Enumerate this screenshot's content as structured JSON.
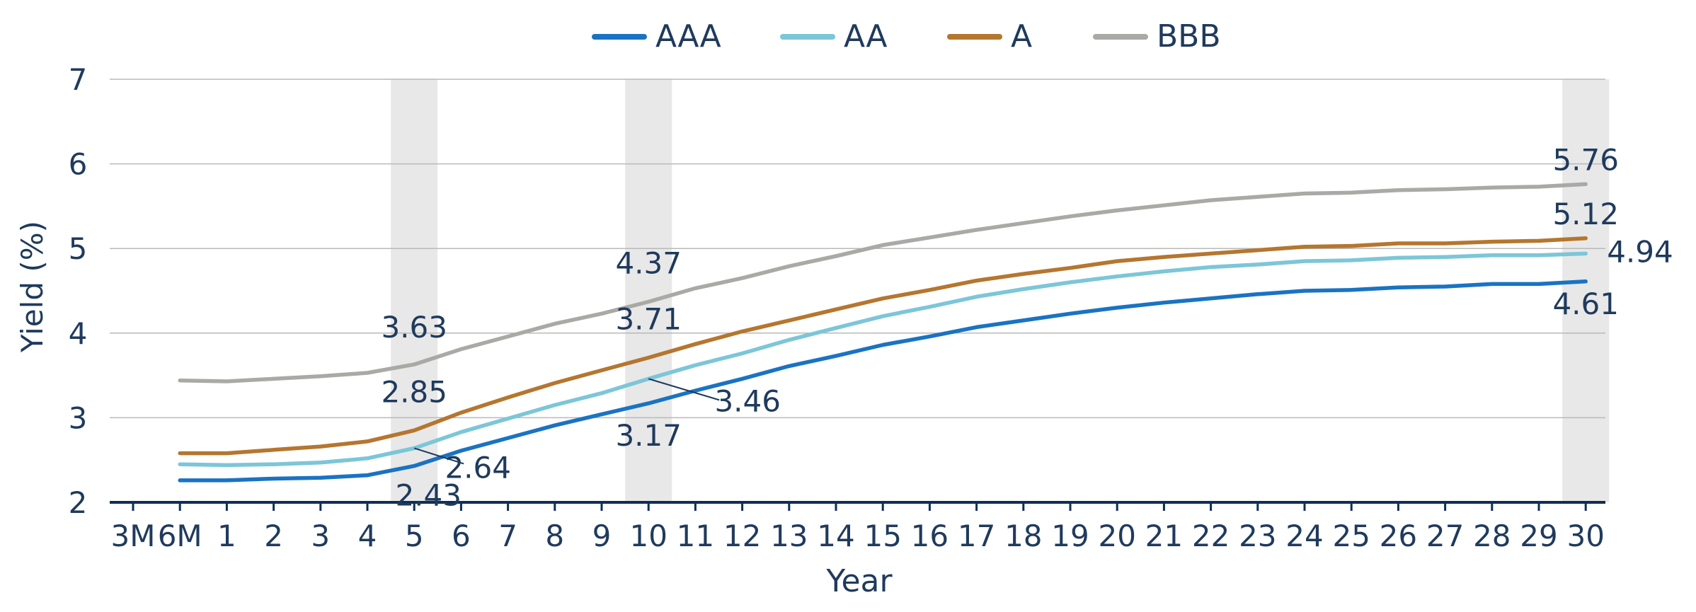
{
  "chart_data": {
    "type": "line",
    "xlabel": "Year",
    "ylabel": "Yield (%)",
    "ylim": [
      2,
      7
    ],
    "yticks": [
      2,
      3,
      4,
      5,
      6,
      7
    ],
    "grid": true,
    "legend_position": "top-center",
    "categories": [
      "3M",
      "6M",
      "1",
      "2",
      "3",
      "4",
      "5",
      "6",
      "7",
      "8",
      "9",
      "10",
      "11",
      "12",
      "13",
      "14",
      "15",
      "16",
      "17",
      "18",
      "19",
      "20",
      "21",
      "22",
      "23",
      "24",
      "25",
      "26",
      "27",
      "28",
      "29",
      "30"
    ],
    "highlighted_categories": [
      "5",
      "10",
      "30"
    ],
    "series": [
      {
        "name": "AAA",
        "color": "#1a73c2",
        "values": [
          null,
          2.26,
          2.26,
          2.28,
          2.29,
          2.32,
          2.43,
          2.61,
          2.76,
          2.91,
          3.04,
          3.17,
          3.32,
          3.46,
          3.61,
          3.73,
          3.86,
          3.96,
          4.07,
          4.15,
          4.23,
          4.3,
          4.36,
          4.41,
          4.46,
          4.5,
          4.51,
          4.54,
          4.55,
          4.58,
          4.58,
          4.61
        ]
      },
      {
        "name": "AA",
        "color": "#7cc6d8",
        "values": [
          null,
          2.45,
          2.44,
          2.45,
          2.47,
          2.52,
          2.64,
          2.83,
          2.99,
          3.15,
          3.29,
          3.46,
          3.62,
          3.76,
          3.92,
          4.06,
          4.2,
          4.31,
          4.43,
          4.52,
          4.6,
          4.67,
          4.73,
          4.78,
          4.81,
          4.85,
          4.86,
          4.89,
          4.9,
          4.92,
          4.92,
          4.94
        ]
      },
      {
        "name": "A",
        "color": "#b5762f",
        "values": [
          null,
          2.58,
          2.58,
          2.62,
          2.66,
          2.72,
          2.85,
          3.06,
          3.24,
          3.41,
          3.56,
          3.71,
          3.87,
          4.02,
          4.15,
          4.28,
          4.41,
          4.51,
          4.62,
          4.7,
          4.77,
          4.85,
          4.9,
          4.94,
          4.98,
          5.02,
          5.03,
          5.06,
          5.06,
          5.08,
          5.09,
          5.12
        ]
      },
      {
        "name": "BBB",
        "color": "#a9a9a5",
        "values": [
          null,
          3.44,
          3.43,
          3.46,
          3.49,
          3.53,
          3.63,
          3.81,
          3.96,
          4.11,
          4.23,
          4.37,
          4.53,
          4.65,
          4.79,
          4.91,
          5.04,
          5.13,
          5.22,
          5.3,
          5.38,
          5.45,
          5.51,
          5.57,
          5.61,
          5.65,
          5.66,
          5.69,
          5.7,
          5.72,
          5.73,
          5.76
        ]
      }
    ],
    "annotations": [
      {
        "series": "BBB",
        "x": "5",
        "label": "3.63"
      },
      {
        "series": "A",
        "x": "5",
        "label": "2.85"
      },
      {
        "series": "AA",
        "x": "5",
        "label": "2.64"
      },
      {
        "series": "AAA",
        "x": "5",
        "label": "2.43"
      },
      {
        "series": "BBB",
        "x": "10",
        "label": "4.37"
      },
      {
        "series": "A",
        "x": "10",
        "label": "3.71"
      },
      {
        "series": "AA",
        "x": "10",
        "label": "3.46"
      },
      {
        "series": "AAA",
        "x": "10",
        "label": "3.17"
      },
      {
        "series": "BBB",
        "x": "30",
        "label": "5.76"
      },
      {
        "series": "A",
        "x": "30",
        "label": "5.12"
      },
      {
        "series": "AA",
        "x": "30",
        "label": "4.94"
      },
      {
        "series": "AAA",
        "x": "30",
        "label": "4.61"
      }
    ]
  }
}
